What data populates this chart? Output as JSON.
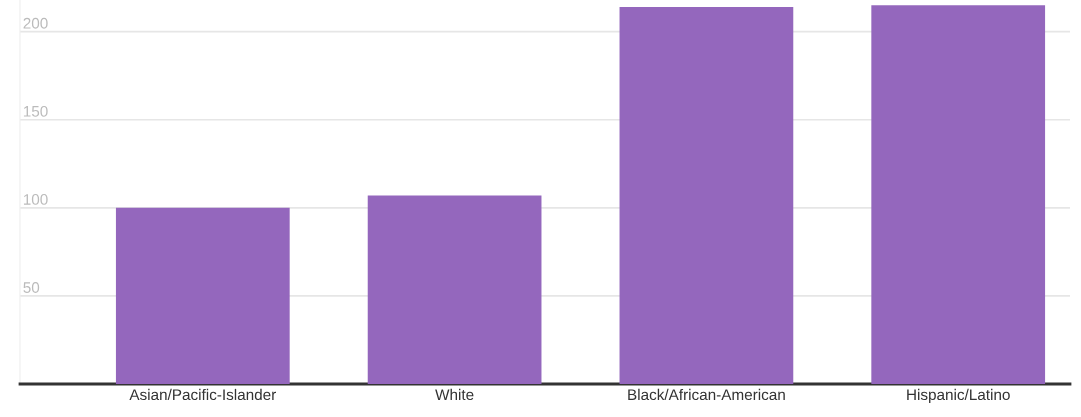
{
  "chart_data": {
    "type": "bar",
    "categories": [
      "Asian/Pacific-Islander",
      "White",
      "Black/African-American",
      "Hispanic/Latino"
    ],
    "values": [
      100,
      107,
      214,
      215
    ],
    "color": "#9467bd",
    "ylim": [
      0,
      218
    ],
    "yticks": [
      {
        "value": 0,
        "label": null
      },
      50,
      100,
      150,
      200
    ],
    "grid": "y"
  }
}
